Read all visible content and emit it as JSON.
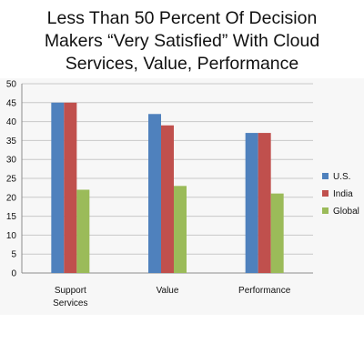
{
  "title_lines": [
    "Less Than 50 Percent Of Decision",
    "Makers “Very Satisfied” With Cloud",
    "Services, Value, Performance"
  ],
  "chart_data": {
    "type": "bar",
    "title": "Less Than 50 Percent Of Decision Makers “Very Satisfied” With Cloud Services, Value, Performance",
    "categories": [
      [
        "Support",
        "Services"
      ],
      [
        "Value"
      ],
      [
        "Performance"
      ]
    ],
    "series": [
      {
        "name": "U.S.",
        "color": "#4f81bd",
        "values": [
          45,
          42,
          37
        ]
      },
      {
        "name": "India",
        "color": "#c0504d",
        "values": [
          45,
          39,
          37
        ]
      },
      {
        "name": "Global",
        "color": "#9bbb59",
        "values": [
          22,
          23,
          21
        ]
      }
    ],
    "ylim": [
      0,
      50
    ],
    "yticks": [
      "0",
      "5",
      "10",
      "15",
      "20",
      "25",
      "30",
      "35",
      "40",
      "45",
      "50"
    ],
    "grid": true,
    "legend": "right"
  }
}
